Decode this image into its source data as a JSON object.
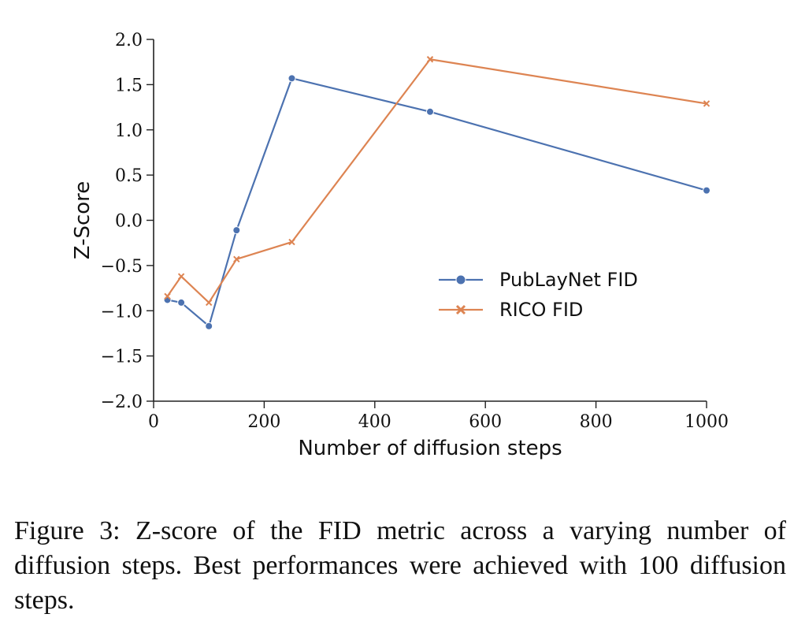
{
  "chart_data": {
    "type": "line",
    "title": "",
    "xlabel": "Number of diffusion steps",
    "ylabel": "Z-Score",
    "xlim": [
      0,
      1000
    ],
    "ylim": [
      -2.0,
      2.0
    ],
    "xticks": [
      0,
      200,
      400,
      600,
      800,
      1000
    ],
    "xtick_labels": [
      "0",
      "200",
      "400",
      "600",
      "800",
      "1000"
    ],
    "yticks": [
      -2.0,
      -1.5,
      -1.0,
      -0.5,
      0.0,
      0.5,
      1.0,
      1.5,
      2.0
    ],
    "ytick_labels": [
      "−2.0",
      "−1.5",
      "−1.0",
      "−0.5",
      "0.0",
      "0.5",
      "1.0",
      "1.5",
      "2.0"
    ],
    "grid": false,
    "legend_position": "center-right",
    "series": [
      {
        "name": "PubLayNet FID",
        "color": "#4c72b0",
        "marker": "circle",
        "x": [
          25,
          50,
          100,
          150,
          250,
          500,
          1000
        ],
        "y": [
          -0.88,
          -0.91,
          -1.17,
          -0.11,
          1.57,
          1.2,
          0.33
        ]
      },
      {
        "name": "RICO FID",
        "color": "#dd8452",
        "marker": "x",
        "x": [
          25,
          50,
          100,
          150,
          250,
          500,
          1000
        ],
        "y": [
          -0.84,
          -0.62,
          -0.91,
          -0.43,
          -0.24,
          1.78,
          1.29
        ]
      }
    ]
  },
  "caption": "Figure 3: Z-score of the FID metric across a varying number of diffusion steps. Best performances were achieved with 100 diffusion steps."
}
